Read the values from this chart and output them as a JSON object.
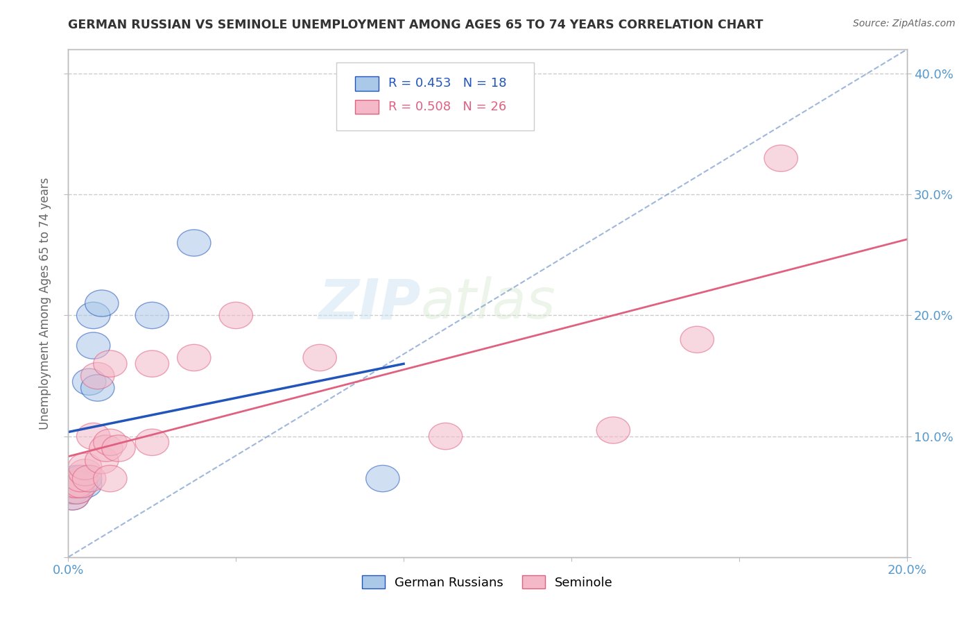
{
  "title": "GERMAN RUSSIAN VS SEMINOLE UNEMPLOYMENT AMONG AGES 65 TO 74 YEARS CORRELATION CHART",
  "source": "Source: ZipAtlas.com",
  "ylabel": "Unemployment Among Ages 65 to 74 years",
  "xlim": [
    0.0,
    0.2
  ],
  "ylim": [
    0.0,
    0.42
  ],
  "german_russian_R": "R = 0.453",
  "german_russian_N": "N = 18",
  "seminole_R": "R = 0.508",
  "seminole_N": "N = 26",
  "legend_label_blue": "German Russians",
  "legend_label_pink": "Seminole",
  "watermark_zip": "ZIP",
  "watermark_atlas": "atlas",
  "blue_color": "#aac8e8",
  "pink_color": "#f4b8c8",
  "blue_line_color": "#2255bb",
  "pink_line_color": "#e06080",
  "dashed_line_color": "#7799cc",
  "background_color": "#ffffff",
  "title_color": "#333333",
  "axis_color": "#bbbbbb",
  "tick_color": "#5599cc",
  "grid_color": "#cccccc",
  "german_russian_x": [
    0.001,
    0.001,
    0.001,
    0.002,
    0.002,
    0.002,
    0.003,
    0.003,
    0.004,
    0.004,
    0.005,
    0.006,
    0.006,
    0.007,
    0.008,
    0.02,
    0.03,
    0.075
  ],
  "german_russian_y": [
    0.05,
    0.055,
    0.06,
    0.055,
    0.06,
    0.065,
    0.06,
    0.065,
    0.06,
    0.065,
    0.145,
    0.175,
    0.2,
    0.14,
    0.21,
    0.2,
    0.26,
    0.065
  ],
  "seminole_x": [
    0.001,
    0.001,
    0.002,
    0.002,
    0.003,
    0.003,
    0.004,
    0.004,
    0.005,
    0.006,
    0.007,
    0.008,
    0.009,
    0.01,
    0.01,
    0.01,
    0.012,
    0.02,
    0.02,
    0.03,
    0.04,
    0.06,
    0.09,
    0.13,
    0.15,
    0.17
  ],
  "seminole_y": [
    0.05,
    0.06,
    0.055,
    0.06,
    0.06,
    0.065,
    0.07,
    0.075,
    0.065,
    0.1,
    0.15,
    0.08,
    0.09,
    0.065,
    0.095,
    0.16,
    0.09,
    0.095,
    0.16,
    0.165,
    0.2,
    0.165,
    0.1,
    0.105,
    0.18,
    0.33
  ]
}
